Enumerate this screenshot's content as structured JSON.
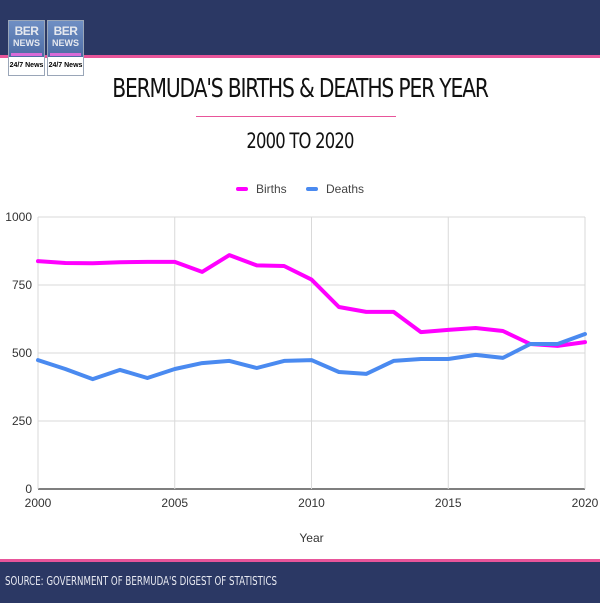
{
  "header": {
    "logo_tiles": [
      {
        "top": "BER",
        "middle": "NEWS",
        "bottom": "24/7 News"
      },
      {
        "top": "BER",
        "middle": "NEWS",
        "bottom": "24/7 News"
      }
    ],
    "title": "BERMUDA'S BIRTHS & DEATHS PER YEAR",
    "subtitle": "2000 TO 2020"
  },
  "footer": {
    "source": "SOURCE: GOVERNMENT OF BERMUDA'S DIGEST OF STATISTICS"
  },
  "colors": {
    "brand_navy": "#2b3864",
    "accent_pink": "#e8559a",
    "births": "#ff00ff",
    "deaths": "#4a8af0"
  },
  "chart_data": {
    "type": "line",
    "title": "Bermuda's Births & Deaths Per Year",
    "xlabel": "Year",
    "ylabel": "",
    "xlim": [
      2000,
      2020
    ],
    "ylim": [
      0,
      1000
    ],
    "x_ticks": [
      "2000",
      "2005",
      "2010",
      "2015",
      "2020"
    ],
    "y_ticks": [
      "0",
      "250",
      "500",
      "750",
      "1000"
    ],
    "grid": true,
    "legend_position": "top-center",
    "x": [
      2000,
      2001,
      2002,
      2003,
      2004,
      2005,
      2006,
      2007,
      2008,
      2009,
      2010,
      2011,
      2012,
      2013,
      2014,
      2015,
      2016,
      2017,
      2018,
      2019,
      2020
    ],
    "series": [
      {
        "name": "Births",
        "color": "#ff00ff",
        "values": [
          838,
          831,
          830,
          834,
          835,
          835,
          798,
          860,
          822,
          820,
          770,
          669,
          651,
          651,
          577,
          585,
          592,
          581,
          533,
          526,
          540
        ]
      },
      {
        "name": "Deaths",
        "color": "#4a8af0",
        "values": [
          474,
          441,
          404,
          438,
          408,
          441,
          463,
          471,
          445,
          471,
          474,
          430,
          423,
          471,
          478,
          478,
          493,
          482,
          533,
          533,
          570
        ]
      }
    ]
  }
}
